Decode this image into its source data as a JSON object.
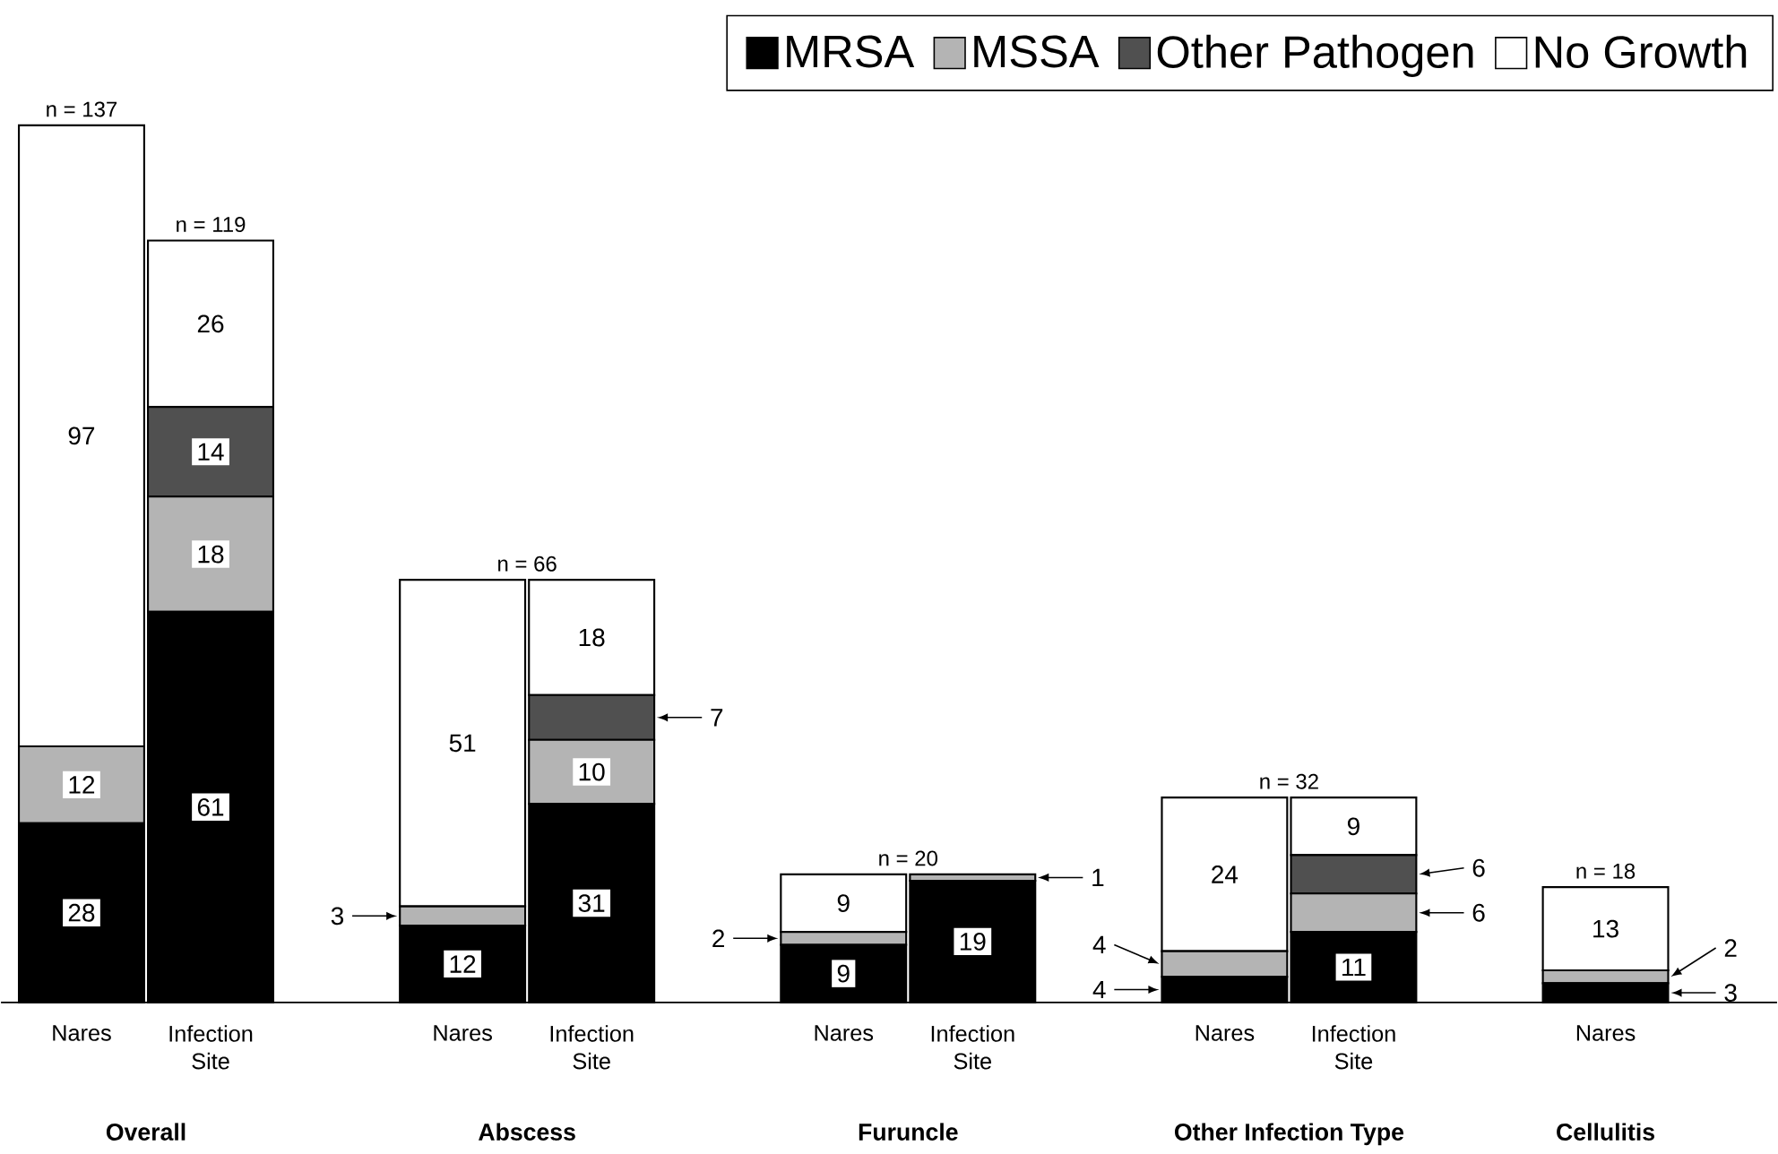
{
  "chart_data": {
    "type": "bar",
    "stacked": true,
    "legend": "top right",
    "categories": [
      "Nares",
      "Infection Site",
      "Nares",
      "Infection Site",
      "Nares",
      "Infection Site",
      "Nares",
      "Infection Site",
      "Nares"
    ],
    "series": [
      {
        "name": "MRSA",
        "color": "#000000",
        "values": [
          28,
          61,
          12,
          31,
          9,
          19,
          4,
          11,
          3
        ],
        "value_labels": [
          "28",
          "61",
          "12",
          "31",
          "9",
          "19",
          "4",
          "11",
          "3"
        ]
      },
      {
        "name": "MSSA",
        "color": "#b4b4b4",
        "values": [
          12,
          18,
          3,
          10,
          2,
          1,
          4,
          6,
          2
        ],
        "value_labels": [
          "12",
          "18",
          "3",
          "10",
          "2",
          "1",
          "4",
          "6",
          "2"
        ]
      },
      {
        "name": "Other Pathogen",
        "color": "#505050",
        "values": [
          0,
          14,
          0,
          7,
          0,
          0,
          0,
          6,
          0
        ],
        "value_labels": [
          null,
          "14",
          null,
          "7",
          null,
          null,
          null,
          "6",
          null
        ]
      },
      {
        "name": "No Growth",
        "color": "#ffffff",
        "values": [
          97,
          26,
          51,
          18,
          9,
          0,
          24,
          9,
          13
        ],
        "value_labels": [
          "97",
          "26",
          "51",
          "18",
          "9",
          null,
          "24",
          "9",
          "13"
        ]
      }
    ],
    "totals": [
      "n = 137",
      "n = 119",
      "n = 66",
      null,
      "n = 20",
      null,
      "n = 32",
      null,
      "n = 18"
    ],
    "annotations": [
      "Overall",
      "Abscess",
      "Furuncle",
      "Other Infection Type",
      "Cellulitis"
    ]
  }
}
